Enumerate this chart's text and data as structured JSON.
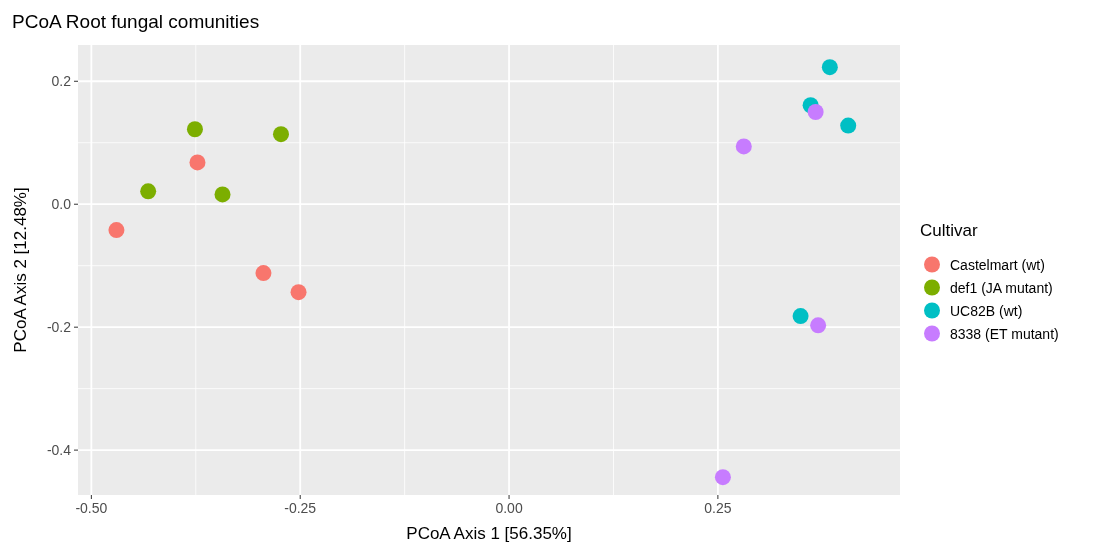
{
  "chart_data": {
    "type": "scatter",
    "title": "PCoA Root fungal comunities",
    "xlabel": "PCoA Axis 1 [56.35%]",
    "ylabel": "PCoA Axis 2 [12.48%]",
    "legend_title": "Cultivar",
    "legend": "right",
    "grid": true,
    "marker": "circle",
    "xlim": [
      -0.516,
      0.468
    ],
    "ylim": [
      -0.473,
      0.259
    ],
    "xticks": [
      {
        "value": -0.5,
        "label": "-0.50"
      },
      {
        "value": -0.25,
        "label": "-0.25"
      },
      {
        "value": 0,
        "label": "0.00"
      },
      {
        "value": 0.25,
        "label": "0.25"
      }
    ],
    "yticks": [
      {
        "value": -0.4,
        "label": "-0.4"
      },
      {
        "value": -0.2,
        "label": "-0.2"
      },
      {
        "value": 0,
        "label": "0.0"
      },
      {
        "value": 0.2,
        "label": "0.2"
      }
    ],
    "series": [
      {
        "name": "Castelmart (wt)",
        "color": "#f8766d",
        "x": [
          -0.47,
          -0.373,
          -0.294,
          -0.252
        ],
        "values": [
          -0.042,
          0.068,
          -0.112,
          -0.143
        ]
      },
      {
        "name": "def1 (JA mutant)",
        "color": "#7cae00",
        "x": [
          -0.376,
          -0.273,
          -0.432,
          -0.343
        ],
        "values": [
          0.122,
          0.114,
          0.021,
          0.016
        ]
      },
      {
        "name": "UC82B (wt)",
        "color": "#00bfc4",
        "x": [
          0.384,
          0.361,
          0.406,
          0.349
        ],
        "values": [
          0.223,
          0.161,
          0.128,
          -0.182
        ]
      },
      {
        "name": "8338 (ET mutant)",
        "color": "#c77cff",
        "x": [
          0.367,
          0.281,
          0.37,
          0.256
        ],
        "values": [
          0.15,
          0.094,
          -0.197,
          -0.444
        ]
      }
    ]
  }
}
